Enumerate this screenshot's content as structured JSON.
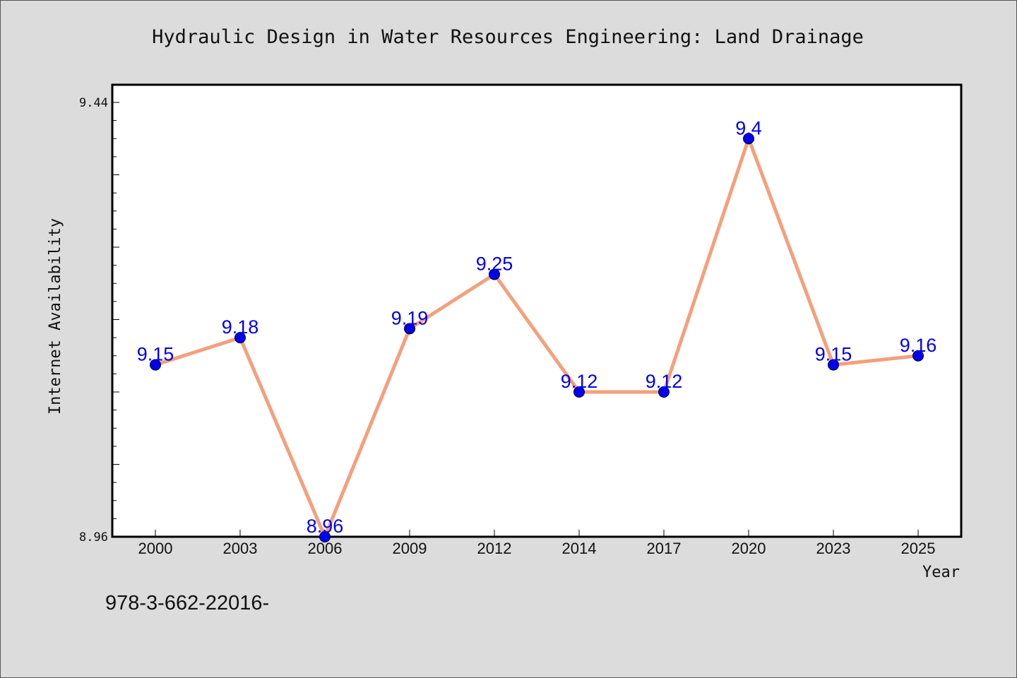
{
  "chart_data": {
    "type": "line",
    "title": "Hydraulic Design in Water Resources Engineering: Land Drainage",
    "xlabel": "Year",
    "ylabel": "Internet Availability",
    "categories": [
      "2000",
      "2003",
      "2006",
      "2009",
      "2012",
      "2014",
      "2017",
      "2020",
      "2023",
      "2025"
    ],
    "series": [
      {
        "values": [
          9.15,
          9.18,
          8.96,
          9.19,
          9.25,
          9.12,
          9.12,
          9.4,
          9.15,
          9.16
        ],
        "data_labels": [
          "9.15",
          "9.18",
          "8.96",
          "9.19",
          "9.25",
          "9.12",
          "9.12",
          "9.4",
          "9.15",
          "9.16"
        ]
      }
    ],
    "ylim": [
      8.96,
      9.44
    ],
    "yticks": [
      "8.96",
      "9.44"
    ],
    "grid": false,
    "colors": {
      "line": "#f4a07c",
      "marker": "#0000ee",
      "data_label": "#0000ee",
      "plot_background": "#ffffff",
      "page_background": "#dcdcdc"
    }
  },
  "footnote": "978-3-662-22016-"
}
